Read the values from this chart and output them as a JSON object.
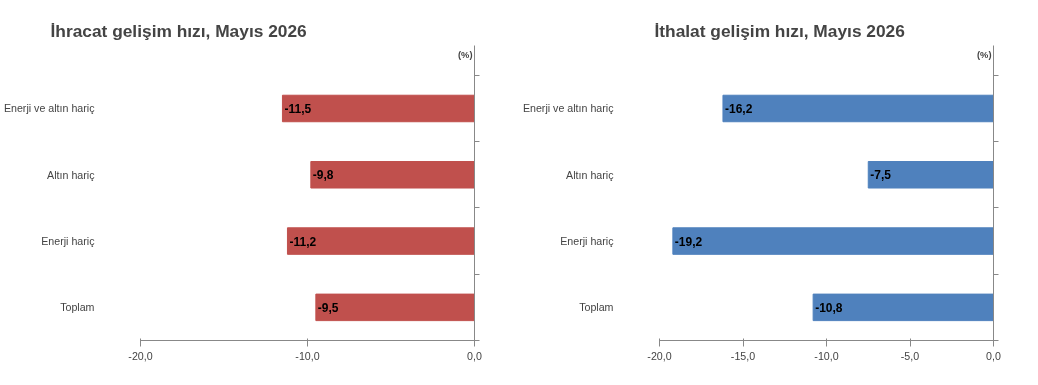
{
  "chart_data": [
    {
      "type": "bar",
      "orientation": "horizontal",
      "title": "İhracat gelişim hızı, Mayıs 2026",
      "annotations": [
        "(%)"
      ],
      "categories": [
        "Enerji ve altın hariç",
        "Altın hariç",
        "Enerji hariç",
        "Toplam"
      ],
      "values": [
        -11.5,
        -9.8,
        -11.2,
        -9.5
      ],
      "value_labels": [
        "-11,5",
        "-9,8",
        "-11,2",
        "-9,5"
      ],
      "color": "#c0504d",
      "xlim": [
        -20,
        0
      ],
      "xticks": [
        {
          "value": -20,
          "label": "-20,0"
        },
        {
          "value": -10,
          "label": "-10,0"
        },
        {
          "value": 0,
          "label": "0,0"
        }
      ],
      "grid": false
    },
    {
      "type": "bar",
      "orientation": "horizontal",
      "title": "İthalat gelişim hızı, Mayıs 2026",
      "annotations": [
        "(%)"
      ],
      "categories": [
        "Enerji ve altın hariç",
        "Altın hariç",
        "Enerji hariç",
        "Toplam"
      ],
      "values": [
        -16.2,
        -7.5,
        -19.2,
        -10.8
      ],
      "value_labels": [
        "-16,2",
        "-7,5",
        "-19,2",
        "-10,8"
      ],
      "color": "#4f81bd",
      "xlim": [
        -20,
        0
      ],
      "xticks": [
        {
          "value": -20,
          "label": "-20,0"
        },
        {
          "value": -15,
          "label": "-15,0"
        },
        {
          "value": -10,
          "label": "-10,0"
        },
        {
          "value": -5,
          "label": "-5,0"
        },
        {
          "value": 0,
          "label": "0,0"
        }
      ],
      "grid": false
    }
  ]
}
